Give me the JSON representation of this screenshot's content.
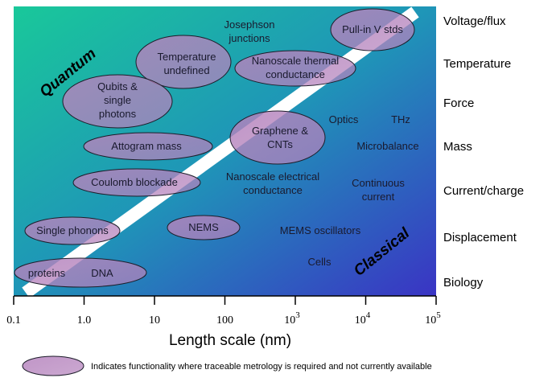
{
  "colors": {
    "gradient_start": "#19c89a",
    "gradient_mid": "#1f95b8",
    "gradient_end": "#3a34c4",
    "ellipse_fill": "#b583bd",
    "ellipse_stroke": "#1d1d2a",
    "band": "#ffffff"
  },
  "regimes": {
    "quantum": "Quantum",
    "classical": "Classical"
  },
  "categories": [
    "Voltage/flux",
    "Temperature",
    "Force",
    "Mass",
    "Current/charge",
    "Displacement",
    "Biology"
  ],
  "x_axis": {
    "title": "Length scale (nm)",
    "ticks": [
      {
        "base": "0.1",
        "exp": ""
      },
      {
        "base": "1.0",
        "exp": ""
      },
      {
        "base": "10",
        "exp": ""
      },
      {
        "base": "100",
        "exp": ""
      },
      {
        "base": "10",
        "exp": "3"
      },
      {
        "base": "10",
        "exp": "4"
      },
      {
        "base": "10",
        "exp": "5"
      }
    ]
  },
  "ellipse_items": [
    {
      "id": "pull-in",
      "lines": [
        "Pull-in V stds"
      ]
    },
    {
      "id": "temp-undefined",
      "lines": [
        "Temperature",
        "undefined"
      ]
    },
    {
      "id": "nanoscale-thermal",
      "lines": [
        "Nanoscale thermal",
        "conductance"
      ]
    },
    {
      "id": "qubits",
      "lines": [
        "Qubits &",
        "single",
        "photons"
      ]
    },
    {
      "id": "graphene",
      "lines": [
        "Graphene &",
        "CNTs"
      ]
    },
    {
      "id": "attogram",
      "lines": [
        "Attogram mass"
      ]
    },
    {
      "id": "coulomb",
      "lines": [
        "Coulomb blockade"
      ]
    },
    {
      "id": "single-phonons",
      "lines": [
        "Single phonons"
      ]
    },
    {
      "id": "nems",
      "lines": [
        "NEMS"
      ]
    },
    {
      "id": "biology",
      "lines": [
        "proteins",
        "DNA"
      ]
    }
  ],
  "plain_items": [
    {
      "id": "josephson",
      "lines": [
        "Josephson",
        "junctions"
      ]
    },
    {
      "id": "optics",
      "lines": [
        "Optics"
      ]
    },
    {
      "id": "thz",
      "lines": [
        "THz"
      ]
    },
    {
      "id": "microbalance",
      "lines": [
        "Microbalance"
      ]
    },
    {
      "id": "nano-electrical",
      "lines": [
        "Nanoscale electrical",
        "conductance"
      ]
    },
    {
      "id": "continuous-current",
      "lines": [
        "Continuous",
        "current"
      ]
    },
    {
      "id": "mems",
      "lines": [
        "MEMS oscillators"
      ]
    },
    {
      "id": "cells",
      "lines": [
        "Cells"
      ]
    }
  ],
  "legend": {
    "text": "Indicates functionality where traceable metrology is required  and not currently available"
  }
}
